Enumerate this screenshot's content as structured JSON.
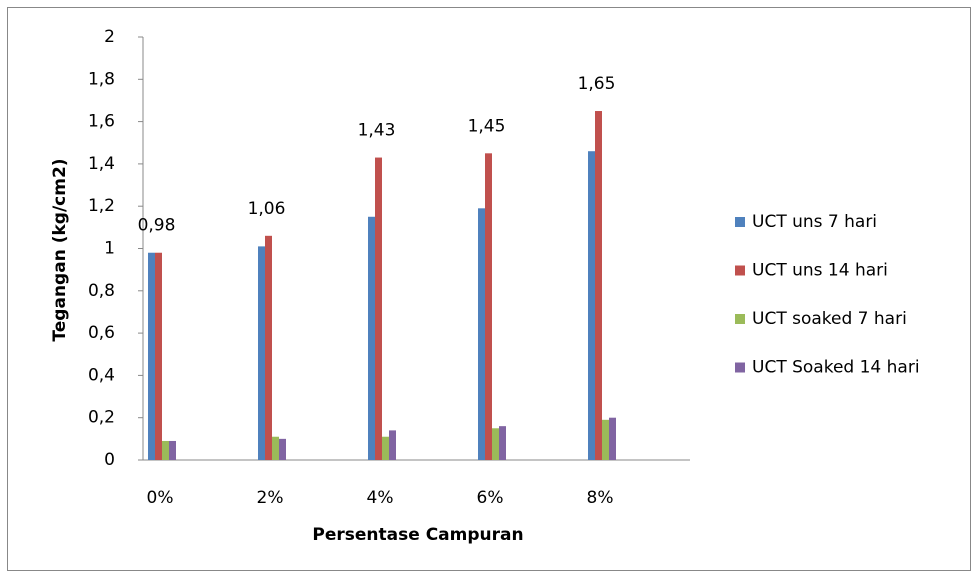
{
  "chart_data": {
    "type": "bar",
    "x_label": "Persentase Campuran",
    "y_label": "Tegangan (kg/cm2)",
    "categories": [
      "0%",
      "2%",
      "4%",
      "6%",
      "8%"
    ],
    "series": [
      {
        "name": "UCT uns 7 hari",
        "color": "#4f81bd",
        "values": [
          0.98,
          1.01,
          1.15,
          1.19,
          1.46
        ]
      },
      {
        "name": "UCT uns 14 hari",
        "color": "#c0504d",
        "values": [
          0.98,
          1.06,
          1.43,
          1.45,
          1.65
        ],
        "value_labels": [
          "0,98",
          "1,06",
          "1,43",
          "1,45",
          "1,65"
        ]
      },
      {
        "name": "UCT soaked 7 hari",
        "color": "#9bbb59",
        "values": [
          0.09,
          0.11,
          0.11,
          0.15,
          0.19
        ]
      },
      {
        "name": "UCT Soaked 14 hari",
        "color": "#8064a2",
        "values": [
          0.09,
          0.1,
          0.14,
          0.16,
          0.2
        ]
      }
    ],
    "ylim": [
      0,
      2
    ],
    "yticks": [
      0,
      {
        "value": 0.2,
        "label": "0,2"
      },
      {
        "value": 0.4,
        "label": "0,4"
      },
      {
        "value": 0.6,
        "label": "0,6"
      },
      {
        "value": 0.8,
        "label": "0,8"
      },
      1,
      {
        "value": 1.2,
        "label": "1,2"
      },
      {
        "value": 1.4,
        "label": "1,4"
      },
      {
        "value": 1.6,
        "label": "1,6"
      },
      {
        "value": 1.8,
        "label": "1,8"
      },
      2
    ],
    "grid": false,
    "legend": "right"
  }
}
